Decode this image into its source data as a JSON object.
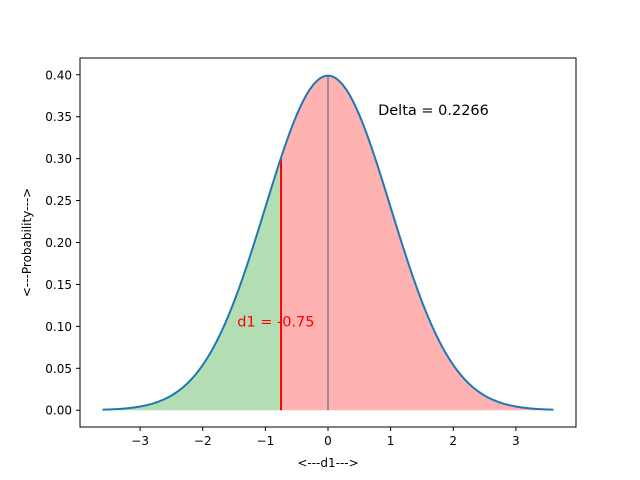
{
  "chart_data": {
    "type": "area",
    "xlabel": "<---d1--->",
    "ylabel": "<---Probability--->",
    "xlim": [
      -3.96,
      3.96
    ],
    "ylim": [
      -0.02,
      0.42
    ],
    "x_range": [
      -3.6,
      3.6
    ],
    "xticks": [
      -3,
      -2,
      -1,
      0,
      1,
      2,
      3
    ],
    "xtick_labels": [
      "−3",
      "−2",
      "−1",
      "0",
      "1",
      "2",
      "3"
    ],
    "yticks": [
      0.0,
      0.05,
      0.1,
      0.15,
      0.2,
      0.25,
      0.3,
      0.35,
      0.4
    ],
    "ytick_labels": [
      "0.00",
      "0.05",
      "0.10",
      "0.15",
      "0.20",
      "0.25",
      "0.30",
      "0.35",
      "0.40"
    ],
    "grid": false,
    "curve": {
      "distribution": "standard normal",
      "mean": 0,
      "sd": 1,
      "color": "#1f77b4"
    },
    "shaded_regions": [
      {
        "from": -3.6,
        "to": -0.75,
        "color": "#2ca02c",
        "opacity": 0.36
      },
      {
        "from": -0.75,
        "to": 3.6,
        "color": "#ff0000",
        "opacity": 0.3
      }
    ],
    "vlines": [
      {
        "x": -0.75,
        "ymax": 0.3,
        "color": "#ff0000"
      },
      {
        "x": 0,
        "ymax": 0.3989,
        "color": "#808080"
      }
    ],
    "annotations": [
      {
        "text": "Delta = 0.2266",
        "x": 0.8,
        "y": 0.352,
        "color": "#000000"
      },
      {
        "text": "d1 = -0.75",
        "x": -1.45,
        "y": 0.1,
        "color": "#ff0000"
      }
    ]
  }
}
